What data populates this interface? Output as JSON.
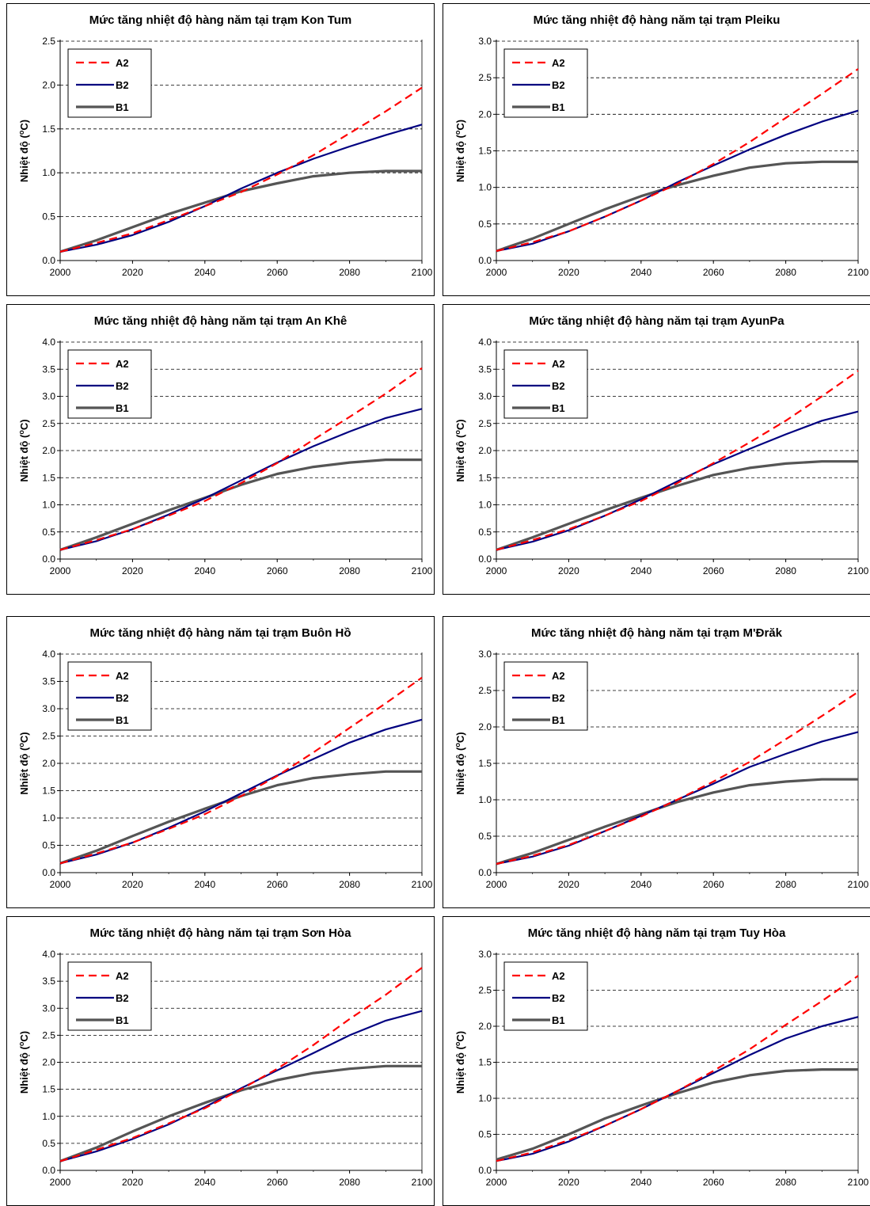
{
  "y_axis_label_prefix": "Nhiệt độ (",
  "y_axis_label_unit": "C)",
  "y_axis_label_superscript": "o",
  "legend": [
    "A2",
    "B2",
    "B1"
  ],
  "colors": {
    "A2": "#ff0000",
    "B2": "#000080",
    "B1": "#555555"
  },
  "chart_data": [
    {
      "type": "line",
      "title": "Mức tăng nhiệt độ hàng năm tại trạm Kon Tum",
      "x": [
        2000,
        2010,
        2020,
        2030,
        2040,
        2050,
        2060,
        2070,
        2080,
        2090,
        2100
      ],
      "xticks": [
        2000,
        2020,
        2040,
        2060,
        2080,
        2100
      ],
      "xlim": [
        2000,
        2100
      ],
      "ylim": [
        0,
        2.5
      ],
      "yticks": [
        "0.0",
        "0.5",
        "1.0",
        "1.5",
        "2.0",
        "2.5"
      ],
      "series": [
        {
          "name": "A2",
          "values": [
            0.1,
            0.2,
            0.31,
            0.46,
            0.62,
            0.78,
            0.98,
            1.2,
            1.45,
            1.7,
            1.97
          ]
        },
        {
          "name": "B2",
          "values": [
            0.1,
            0.18,
            0.29,
            0.44,
            0.62,
            0.82,
            1.0,
            1.16,
            1.3,
            1.43,
            1.55
          ]
        },
        {
          "name": "B1",
          "values": [
            0.1,
            0.23,
            0.38,
            0.53,
            0.66,
            0.79,
            0.88,
            0.96,
            1.0,
            1.02,
            1.02
          ]
        }
      ]
    },
    {
      "type": "line",
      "title": "Mức tăng nhiệt độ hàng năm tại trạm Pleiku",
      "x": [
        2000,
        2010,
        2020,
        2030,
        2040,
        2050,
        2060,
        2070,
        2080,
        2090,
        2100
      ],
      "xticks": [
        2000,
        2020,
        2040,
        2060,
        2080,
        2100
      ],
      "xlim": [
        2000,
        2100
      ],
      "ylim": [
        0,
        3.0
      ],
      "yticks": [
        "0.0",
        "0.5",
        "1.0",
        "1.5",
        "2.0",
        "2.5",
        "3.0"
      ],
      "series": [
        {
          "name": "A2",
          "values": [
            0.13,
            0.25,
            0.4,
            0.6,
            0.82,
            1.05,
            1.32,
            1.62,
            1.95,
            2.28,
            2.62
          ]
        },
        {
          "name": "B2",
          "values": [
            0.13,
            0.23,
            0.4,
            0.6,
            0.82,
            1.07,
            1.3,
            1.52,
            1.72,
            1.9,
            2.05
          ]
        },
        {
          "name": "B1",
          "values": [
            0.13,
            0.3,
            0.5,
            0.7,
            0.88,
            1.03,
            1.16,
            1.27,
            1.33,
            1.35,
            1.35
          ]
        }
      ]
    },
    {
      "type": "line",
      "title": "Mức tăng nhiệt độ hàng năm tại trạm An Khê",
      "x": [
        2000,
        2010,
        2020,
        2030,
        2040,
        2050,
        2060,
        2070,
        2080,
        2090,
        2100
      ],
      "xticks": [
        2000,
        2020,
        2040,
        2060,
        2080,
        2100
      ],
      "xlim": [
        2000,
        2100
      ],
      "ylim": [
        0,
        4.0
      ],
      "yticks": [
        "0.0",
        "0.5",
        "1.0",
        "1.5",
        "2.0",
        "2.5",
        "3.0",
        "3.5",
        "4.0"
      ],
      "series": [
        {
          "name": "A2",
          "values": [
            0.17,
            0.35,
            0.55,
            0.8,
            1.07,
            1.4,
            1.77,
            2.2,
            2.62,
            3.05,
            3.52
          ]
        },
        {
          "name": "B2",
          "values": [
            0.17,
            0.33,
            0.55,
            0.82,
            1.12,
            1.45,
            1.78,
            2.08,
            2.35,
            2.6,
            2.77
          ]
        },
        {
          "name": "B1",
          "values": [
            0.17,
            0.4,
            0.65,
            0.9,
            1.13,
            1.37,
            1.57,
            1.7,
            1.78,
            1.83,
            1.83
          ]
        }
      ]
    },
    {
      "type": "line",
      "title": "Mức tăng nhiệt độ hàng năm tại trạm AyunPa",
      "x": [
        2000,
        2010,
        2020,
        2030,
        2040,
        2050,
        2060,
        2070,
        2080,
        2090,
        2100
      ],
      "xticks": [
        2000,
        2020,
        2040,
        2060,
        2080,
        2100
      ],
      "xlim": [
        2000,
        2100
      ],
      "ylim": [
        0,
        4.0
      ],
      "yticks": [
        "0.0",
        "0.5",
        "1.0",
        "1.5",
        "2.0",
        "2.5",
        "3.0",
        "3.5",
        "4.0"
      ],
      "series": [
        {
          "name": "A2",
          "values": [
            0.17,
            0.35,
            0.55,
            0.8,
            1.07,
            1.4,
            1.77,
            2.15,
            2.55,
            3.0,
            3.47
          ]
        },
        {
          "name": "B2",
          "values": [
            0.17,
            0.32,
            0.53,
            0.8,
            1.1,
            1.43,
            1.75,
            2.03,
            2.3,
            2.55,
            2.72
          ]
        },
        {
          "name": "B1",
          "values": [
            0.17,
            0.4,
            0.65,
            0.9,
            1.13,
            1.35,
            1.55,
            1.68,
            1.76,
            1.8,
            1.8
          ]
        }
      ]
    },
    {
      "type": "line",
      "title": "Mức tăng nhiệt độ hàng năm tại trạm Buôn Hồ",
      "x": [
        2000,
        2010,
        2020,
        2030,
        2040,
        2050,
        2060,
        2070,
        2080,
        2090,
        2100
      ],
      "xticks": [
        2000,
        2020,
        2040,
        2060,
        2080,
        2100
      ],
      "xlim": [
        2000,
        2100
      ],
      "ylim": [
        0,
        4.0
      ],
      "yticks": [
        "0.0",
        "0.5",
        "1.0",
        "1.5",
        "2.0",
        "2.5",
        "3.0",
        "3.5",
        "4.0"
      ],
      "series": [
        {
          "name": "A2",
          "values": [
            0.17,
            0.35,
            0.55,
            0.8,
            1.07,
            1.4,
            1.77,
            2.2,
            2.65,
            3.1,
            3.57
          ]
        },
        {
          "name": "B2",
          "values": [
            0.17,
            0.33,
            0.55,
            0.82,
            1.12,
            1.45,
            1.78,
            2.08,
            2.38,
            2.62,
            2.8
          ]
        },
        {
          "name": "B1",
          "values": [
            0.17,
            0.4,
            0.67,
            0.93,
            1.17,
            1.4,
            1.6,
            1.73,
            1.8,
            1.85,
            1.85
          ]
        }
      ]
    },
    {
      "type": "line",
      "title": "Mức tăng nhiệt độ hàng năm tại trạm M'Đrăk",
      "x": [
        2000,
        2010,
        2020,
        2030,
        2040,
        2050,
        2060,
        2070,
        2080,
        2090,
        2100
      ],
      "xticks": [
        2000,
        2020,
        2040,
        2060,
        2080,
        2100
      ],
      "xlim": [
        2000,
        2100
      ],
      "ylim": [
        0,
        3.0
      ],
      "yticks": [
        "0.0",
        "0.5",
        "1.0",
        "1.5",
        "2.0",
        "2.5",
        "3.0"
      ],
      "series": [
        {
          "name": "A2",
          "values": [
            0.12,
            0.23,
            0.38,
            0.57,
            0.77,
            1.0,
            1.25,
            1.52,
            1.83,
            2.15,
            2.48
          ]
        },
        {
          "name": "B2",
          "values": [
            0.12,
            0.22,
            0.37,
            0.57,
            0.78,
            1.0,
            1.22,
            1.45,
            1.63,
            1.8,
            1.93
          ]
        },
        {
          "name": "B1",
          "values": [
            0.12,
            0.27,
            0.45,
            0.63,
            0.8,
            0.97,
            1.1,
            1.2,
            1.25,
            1.28,
            1.28
          ]
        }
      ]
    },
    {
      "type": "line",
      "title": "Mức tăng nhiệt độ hàng năm tại trạm Sơn Hòa",
      "x": [
        2000,
        2010,
        2020,
        2030,
        2040,
        2050,
        2060,
        2070,
        2080,
        2090,
        2100
      ],
      "xticks": [
        2000,
        2020,
        2040,
        2060,
        2080,
        2100
      ],
      "xlim": [
        2000,
        2100
      ],
      "ylim": [
        0,
        4.0
      ],
      "yticks": [
        "0.0",
        "0.5",
        "1.0",
        "1.5",
        "2.0",
        "2.5",
        "3.0",
        "3.5",
        "4.0"
      ],
      "series": [
        {
          "name": "A2",
          "values": [
            0.17,
            0.38,
            0.6,
            0.87,
            1.15,
            1.5,
            1.88,
            2.32,
            2.8,
            3.25,
            3.75
          ]
        },
        {
          "name": "B2",
          "values": [
            0.17,
            0.35,
            0.58,
            0.85,
            1.17,
            1.52,
            1.85,
            2.17,
            2.5,
            2.77,
            2.95
          ]
        },
        {
          "name": "B1",
          "values": [
            0.17,
            0.42,
            0.72,
            1.0,
            1.25,
            1.48,
            1.67,
            1.8,
            1.88,
            1.93,
            1.93
          ]
        }
      ]
    },
    {
      "type": "line",
      "title": "Mức tăng nhiệt độ hàng năm tại trạm Tuy Hòa",
      "x": [
        2000,
        2010,
        2020,
        2030,
        2040,
        2050,
        2060,
        2070,
        2080,
        2090,
        2100
      ],
      "xticks": [
        2000,
        2020,
        2040,
        2060,
        2080,
        2100
      ],
      "xlim": [
        2000,
        2100
      ],
      "ylim": [
        0,
        3.0
      ],
      "yticks": [
        "0.0",
        "0.5",
        "1.0",
        "1.5",
        "2.0",
        "2.5",
        "3.0"
      ],
      "series": [
        {
          "name": "A2",
          "values": [
            0.13,
            0.25,
            0.42,
            0.62,
            0.85,
            1.1,
            1.38,
            1.68,
            2.02,
            2.35,
            2.7
          ]
        },
        {
          "name": "B2",
          "values": [
            0.13,
            0.23,
            0.4,
            0.62,
            0.85,
            1.1,
            1.35,
            1.6,
            1.83,
            2.0,
            2.13
          ]
        },
        {
          "name": "B1",
          "values": [
            0.15,
            0.3,
            0.5,
            0.72,
            0.9,
            1.07,
            1.22,
            1.32,
            1.38,
            1.4,
            1.4
          ]
        }
      ]
    }
  ]
}
